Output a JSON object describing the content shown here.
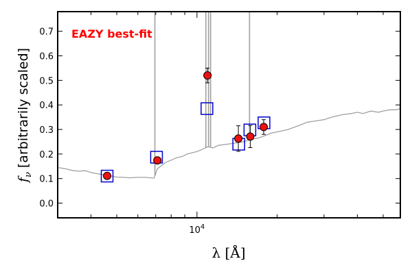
{
  "chart_data": {
    "type": "scatter",
    "title": "",
    "annotation": {
      "text": "EAZY best-fit",
      "color": "#ff0000"
    },
    "xlabel": "λ [Å]",
    "ylabel": "f_ν [arbitrarily scaled]",
    "ylabel_sym": "f",
    "ylabel_sub": "ν",
    "ylabel_rest": " [arbitrarily scaled]",
    "x_scale": "log",
    "xlim": [
      3000,
      58000
    ],
    "ylim": [
      -0.06,
      0.78
    ],
    "y_ticks": [
      0.0,
      0.1,
      0.2,
      0.3,
      0.4,
      0.5,
      0.6,
      0.7
    ],
    "y_tick_labels": [
      "0.0",
      "0.1",
      "0.2",
      "0.3",
      "0.4",
      "0.5",
      "0.6",
      "0.7"
    ],
    "x_tick_label": {
      "value": 10000,
      "base": "10",
      "exp": "4"
    },
    "x_minor_ticks": [
      4000,
      5000,
      6000,
      7000,
      8000,
      9000,
      20000,
      30000,
      40000,
      50000
    ],
    "grid": false,
    "colors": {
      "model": "#a0a0a0",
      "model_box": "#0000cc",
      "observed": "#ee1111",
      "errorbar": "#000000"
    },
    "series": [
      {
        "role": "model-spectrum",
        "x": [
          3000,
          3200,
          3400,
          3600,
          3800,
          4000,
          4200,
          4500,
          4800,
          5000,
          5300,
          5600,
          6000,
          6400,
          6700,
          6900,
          7000,
          7050,
          7100,
          7300,
          7600,
          8000,
          8400,
          8800,
          9200,
          9600,
          10000,
          10500,
          11000,
          11500,
          12000,
          13000,
          14000,
          15000,
          16000,
          17000,
          18000,
          19000,
          20000,
          22000,
          24000,
          26000,
          28000,
          30000,
          32000,
          35000,
          38000,
          40000,
          42000,
          45000,
          48000,
          50000,
          53000,
          56000,
          58000
        ],
        "y": [
          0.145,
          0.14,
          0.133,
          0.13,
          0.132,
          0.125,
          0.12,
          0.115,
          0.11,
          0.106,
          0.105,
          0.103,
          0.105,
          0.105,
          0.103,
          0.102,
          0.12,
          0.13,
          0.14,
          0.15,
          0.165,
          0.175,
          0.185,
          0.19,
          0.2,
          0.205,
          0.21,
          0.22,
          0.23,
          0.225,
          0.235,
          0.24,
          0.245,
          0.25,
          0.26,
          0.265,
          0.275,
          0.285,
          0.29,
          0.3,
          0.315,
          0.33,
          0.335,
          0.34,
          0.35,
          0.36,
          0.365,
          0.37,
          0.365,
          0.375,
          0.37,
          0.375,
          0.38,
          0.38,
          0.385
        ],
        "emission_lines": [
          {
            "x": 6950,
            "peak": 0.78
          },
          {
            "x": 10800,
            "peak": 0.78
          },
          {
            "x": 11050,
            "peak": 0.78
          },
          {
            "x": 11250,
            "peak": 0.78
          },
          {
            "x": 15750,
            "peak": 0.78
          }
        ]
      },
      {
        "role": "model-fluxes",
        "x": [
          4600,
          7050,
          10900,
          14350,
          15800,
          17850
        ],
        "y": [
          0.11,
          0.187,
          0.385,
          0.24,
          0.298,
          0.327
        ]
      },
      {
        "role": "observed-fluxes",
        "x": [
          4600,
          7100,
          10950,
          14300,
          15850,
          17800
        ],
        "y": [
          0.111,
          0.174,
          0.52,
          0.263,
          0.271,
          0.31
        ],
        "yerr": [
          0.0,
          0.0,
          0.03,
          0.052,
          0.045,
          0.03
        ]
      }
    ]
  }
}
